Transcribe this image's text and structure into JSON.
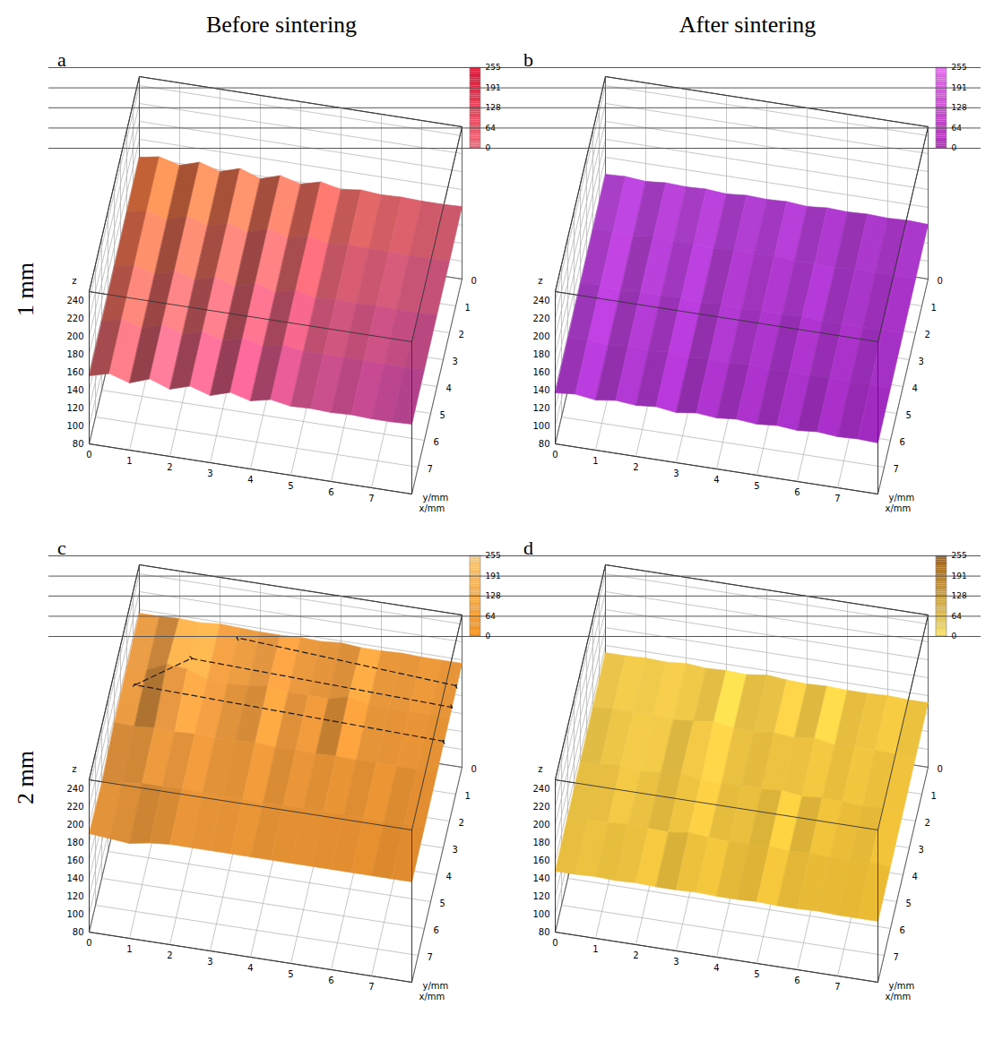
{
  "column_titles": [
    "Before sintering",
    "After sintering"
  ],
  "row_titles": [
    "1 mm",
    "2 mm"
  ],
  "chart_data": [
    {
      "type": "surface",
      "label": "a",
      "x_label": "x/mm",
      "y_label": "y/mm",
      "z_label": "z",
      "xlim": [
        0,
        8
      ],
      "xticks": [
        0,
        1,
        2,
        3,
        4,
        5,
        6,
        7
      ],
      "ylim": [
        0,
        8
      ],
      "yticks": [
        0,
        1,
        2,
        3,
        4,
        5,
        6,
        7
      ],
      "zlim": [
        80,
        250
      ],
      "zticks": [
        80,
        100,
        120,
        140,
        160,
        180,
        200,
        220,
        240
      ],
      "x": [
        0,
        0.5,
        1,
        1.5,
        2,
        2.5,
        3,
        3.5,
        4,
        4.5,
        5,
        5.5,
        6,
        6.5,
        7,
        7.5,
        8
      ],
      "y": [
        0,
        2,
        4,
        6,
        8
      ],
      "z": [
        [
          160,
          164,
          158,
          165,
          158,
          165,
          157,
          164,
          158,
          164,
          159,
          162,
          160,
          161,
          160,
          160,
          161
        ],
        [
          159,
          164,
          157,
          165,
          157,
          164,
          157,
          165,
          158,
          163,
          159,
          161,
          160,
          160,
          159,
          160,
          160
        ],
        [
          158,
          163,
          156,
          164,
          157,
          164,
          156,
          164,
          157,
          163,
          158,
          160,
          159,
          160,
          159,
          159,
          160
        ],
        [
          157,
          163,
          156,
          164,
          156,
          163,
          156,
          163,
          157,
          162,
          158,
          159,
          158,
          159,
          158,
          158,
          159
        ],
        [
          156,
          162,
          155,
          163,
          155,
          162,
          155,
          162,
          156,
          161,
          157,
          158,
          157,
          158,
          157,
          157,
          158
        ]
      ],
      "colors": [
        "#f07a3a",
        "#b8409a"
      ],
      "colorbar": {
        "range": [
          0,
          255
        ],
        "ticks": [
          0,
          64,
          128,
          191,
          255
        ],
        "colors": [
          "#f06a7a",
          "#d81838"
        ]
      }
    },
    {
      "type": "surface",
      "label": "b",
      "x_label": "x/mm",
      "y_label": "y/mm",
      "z_label": "z",
      "xlim": [
        0,
        8
      ],
      "xticks": [
        0,
        1,
        2,
        3,
        4,
        5,
        6,
        7
      ],
      "ylim": [
        0,
        8
      ],
      "yticks": [
        0,
        1,
        2,
        3,
        4,
        5,
        6,
        7
      ],
      "zlim": [
        80,
        250
      ],
      "zticks": [
        80,
        100,
        120,
        140,
        160,
        180,
        200,
        220,
        240
      ],
      "x": [
        0,
        0.5,
        1,
        1.5,
        2,
        2.5,
        3,
        3.5,
        4,
        4.5,
        5,
        5.5,
        6,
        6.5,
        7,
        7.5,
        8
      ],
      "y": [
        0,
        2,
        4,
        6,
        8
      ],
      "z": [
        [
          141,
          142,
          140,
          142,
          141,
          142,
          140,
          142,
          141,
          142,
          140,
          142,
          141,
          142,
          141,
          142,
          141
        ],
        [
          140,
          141,
          139,
          142,
          140,
          141,
          139,
          141,
          140,
          141,
          139,
          140,
          138,
          141,
          140,
          141,
          140
        ],
        [
          139,
          141,
          138,
          141,
          139,
          141,
          138,
          141,
          139,
          140,
          139,
          141,
          139,
          140,
          139,
          140,
          139
        ],
        [
          138,
          140,
          137,
          140,
          138,
          140,
          137,
          140,
          138,
          140,
          138,
          140,
          138,
          140,
          138,
          139,
          138
        ],
        [
          137,
          139,
          136,
          139,
          137,
          139,
          136,
          139,
          137,
          139,
          137,
          139,
          137,
          139,
          137,
          138,
          137
        ]
      ],
      "colors": [
        "#b444d4",
        "#9a28b8"
      ],
      "colorbar": {
        "range": [
          0,
          255
        ],
        "ticks": [
          0,
          64,
          128,
          191,
          255
        ],
        "colors": [
          "#b030b8",
          "#e070e8"
        ]
      }
    },
    {
      "type": "surface",
      "label": "c",
      "x_label": "x/mm",
      "y_label": "y/mm",
      "z_label": "z",
      "xlim": [
        0,
        8
      ],
      "xticks": [
        0,
        1,
        2,
        3,
        4,
        5,
        6,
        7
      ],
      "ylim": [
        0,
        8
      ],
      "yticks": [
        0,
        1,
        2,
        3,
        4,
        5,
        6,
        7
      ],
      "zlim": [
        80,
        250
      ],
      "zticks": [
        80,
        100,
        120,
        140,
        160,
        180,
        200,
        220,
        240
      ],
      "x": [
        0,
        0.5,
        1,
        1.5,
        2,
        2.5,
        3,
        3.5,
        4,
        4.5,
        5,
        5.5,
        6,
        6.5,
        7,
        7.5,
        8
      ],
      "y": [
        0,
        2,
        4,
        6,
        8
      ],
      "z": [
        [
          196,
          196,
          197,
          196,
          198,
          197,
          196,
          196,
          197,
          196,
          198,
          196,
          196,
          197,
          196,
          196,
          196
        ],
        [
          195,
          196,
          206,
          204,
          196,
          195,
          196,
          199,
          195,
          196,
          195,
          201,
          196,
          195,
          196,
          195,
          195
        ],
        [
          194,
          193,
          195,
          194,
          195,
          194,
          195,
          196,
          194,
          195,
          194,
          195,
          194,
          195,
          194,
          194,
          194
        ],
        [
          186,
          190,
          193,
          193,
          194,
          193,
          193,
          193,
          192,
          193,
          193,
          193,
          193,
          193,
          192,
          193,
          193
        ],
        [
          190,
          188,
          186,
          190,
          192,
          192,
          192,
          192,
          192,
          192,
          192,
          192,
          192,
          192,
          192,
          192,
          192
        ]
      ],
      "path": [
        [
          [
            8,
            2.9,
            196
          ],
          [
            0.3,
            2.6,
            196
          ],
          [
            1.5,
            1.4,
            198
          ],
          [
            8,
            1.7,
            198
          ]
        ],
        [
          [
            8,
            0.9,
            198
          ],
          [
            2.5,
            0.4,
            198
          ]
        ]
      ],
      "colors": [
        "#f4a44a",
        "#e08a2a"
      ],
      "colorbar": {
        "range": [
          0,
          255
        ],
        "ticks": [
          0,
          64,
          128,
          191,
          255
        ],
        "colors": [
          "#f09020",
          "#f8c878"
        ]
      }
    },
    {
      "type": "surface",
      "label": "d",
      "x_label": "x/mm",
      "y_label": "y/mm",
      "z_label": "z",
      "xlim": [
        0,
        8
      ],
      "xticks": [
        0,
        1,
        2,
        3,
        4,
        5,
        6,
        7
      ],
      "ylim": [
        0,
        8
      ],
      "yticks": [
        0,
        1,
        2,
        3,
        4,
        5,
        6,
        7
      ],
      "zlim": [
        80,
        250
      ],
      "zticks": [
        80,
        100,
        120,
        140,
        160,
        180,
        200,
        220,
        240
      ],
      "x": [
        0,
        0.5,
        1,
        1.5,
        2,
        2.5,
        3,
        3.5,
        4,
        4.5,
        5,
        5.5,
        6,
        6.5,
        7,
        7.5,
        8
      ],
      "y": [
        0,
        2,
        4,
        6,
        8
      ],
      "z": [
        [
          152,
          152,
          153,
          152,
          154,
          152,
          153,
          152,
          155,
          153,
          152,
          153,
          152,
          152,
          153,
          152,
          152
        ],
        [
          151,
          153,
          152,
          154,
          151,
          153,
          156,
          152,
          151,
          154,
          152,
          155,
          151,
          153,
          152,
          151,
          151
        ],
        [
          150,
          151,
          153,
          150,
          152,
          155,
          151,
          150,
          152,
          151,
          153,
          150,
          152,
          151,
          150,
          151,
          150
        ],
        [
          149,
          150,
          149,
          151,
          150,
          149,
          152,
          150,
          149,
          150,
          151,
          149,
          150,
          149,
          150,
          150,
          149
        ],
        [
          148,
          148,
          149,
          148,
          149,
          148,
          148,
          149,
          148,
          148,
          149,
          148,
          148,
          149,
          148,
          148,
          148
        ]
      ],
      "colors": [
        "#f6d050",
        "#e8b830"
      ],
      "colorbar": {
        "range": [
          0,
          255
        ],
        "ticks": [
          0,
          64,
          128,
          191,
          255
        ],
        "colors": [
          "#f4e070",
          "#a06018"
        ]
      }
    }
  ]
}
